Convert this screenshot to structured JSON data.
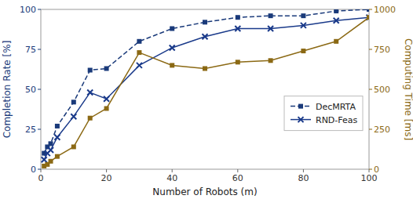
{
  "chart_data": {
    "type": "line",
    "xlabel": "Number of Robots (m)",
    "ylabel": "Completion Rate [%]",
    "y2label": "Computing Time [ms]",
    "x": [
      1,
      2,
      3,
      5,
      10,
      15,
      20,
      30,
      40,
      50,
      60,
      70,
      80,
      90,
      100
    ],
    "series": [
      {
        "name": "DecMRTA",
        "color": "#1a3a7a",
        "marker": "square",
        "line_style": "dashed",
        "values": [
          10,
          14,
          16,
          27,
          42,
          62,
          63,
          80,
          88,
          92,
          95,
          96,
          96,
          99,
          100
        ]
      },
      {
        "name": "RND-Feas",
        "color": "#1a3a8a",
        "marker": "x",
        "line_style": "solid",
        "values": [
          6,
          10,
          12,
          20,
          33,
          48,
          44,
          65,
          76,
          83,
          88,
          88,
          90,
          93,
          95
        ]
      },
      {
        "color": "#8B6914",
        "marker": "square",
        "line_style": "solid",
        "axis": "y2",
        "values": [
          20,
          30,
          50,
          80,
          140,
          320,
          380,
          730,
          650,
          630,
          670,
          680,
          740,
          800,
          950
        ]
      }
    ],
    "xlim": [
      0,
      100
    ],
    "xticks": [
      0,
      20,
      40,
      60,
      80,
      100
    ],
    "ylim": [
      0,
      100
    ],
    "yticks": [
      0,
      25,
      50,
      75,
      100
    ],
    "y2lim": [
      0,
      1000
    ],
    "y2ticks": [
      0,
      250,
      500,
      750,
      1000
    ],
    "legend": "right",
    "grid": false
  }
}
